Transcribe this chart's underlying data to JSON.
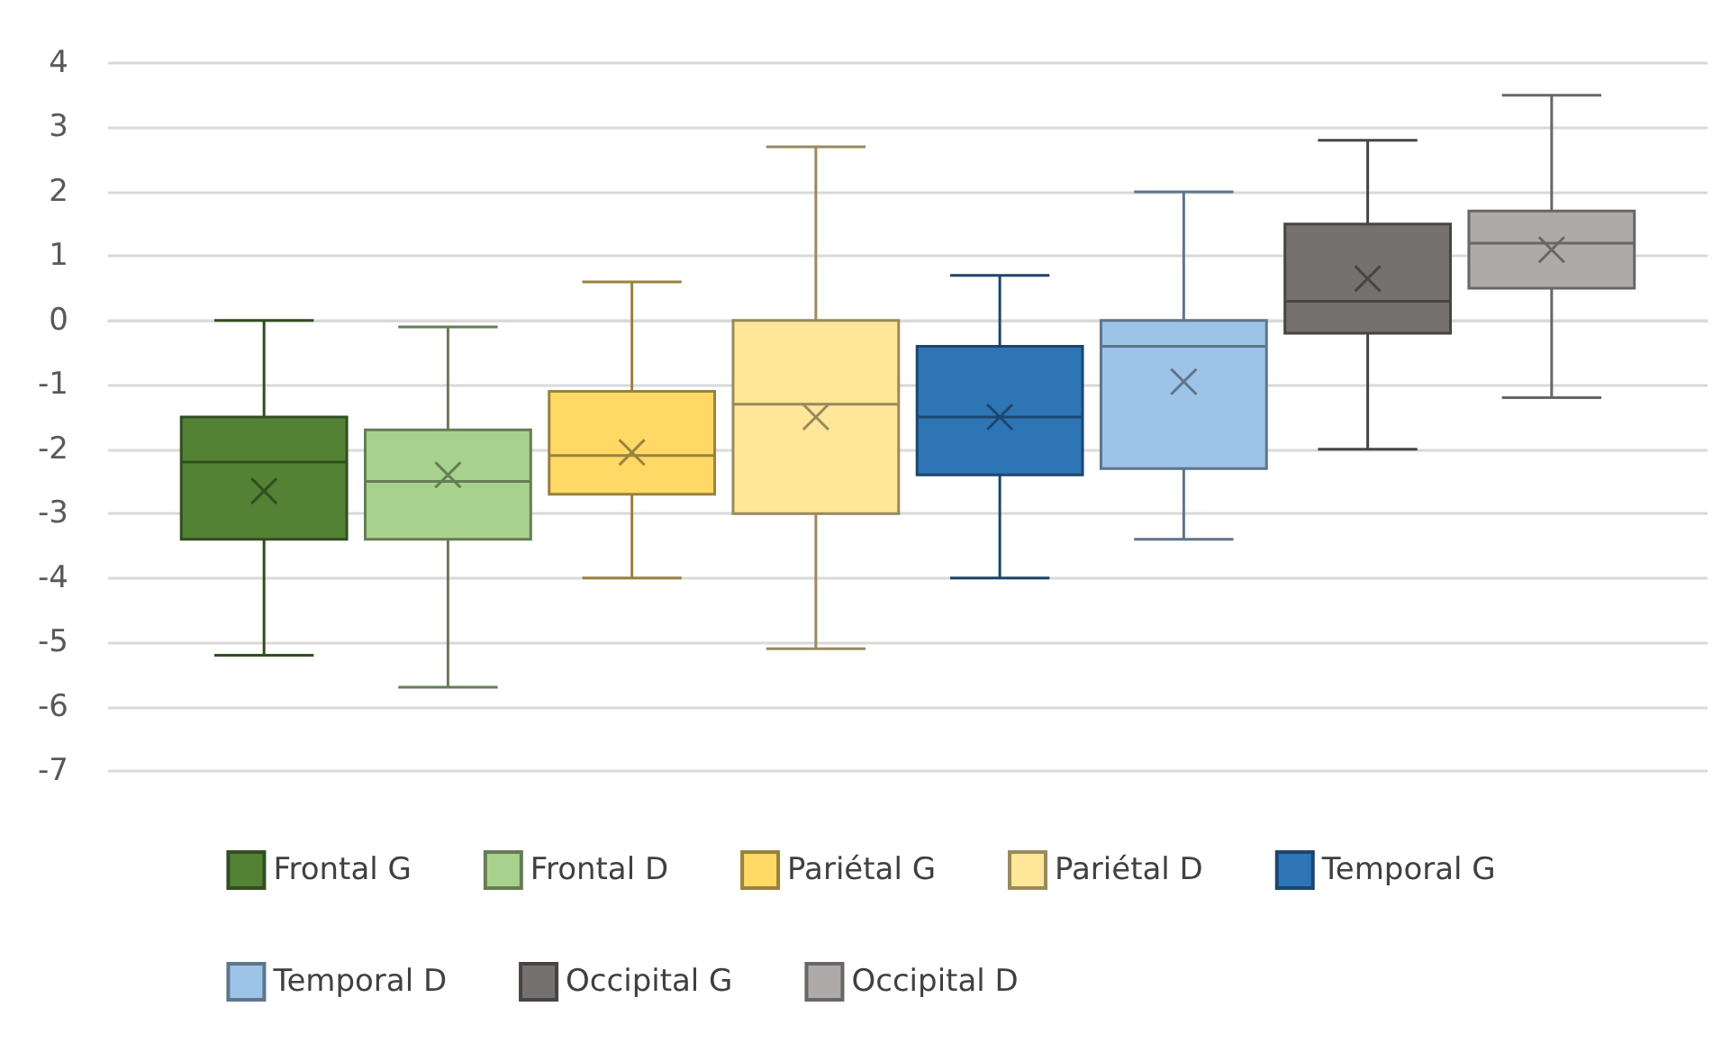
{
  "chart_data": {
    "type": "box",
    "categories": [
      null
    ],
    "ylim": [
      -7,
      4
    ],
    "yticks": [
      -7,
      -6,
      -5,
      -4,
      -3,
      -2,
      -1,
      0,
      1,
      2,
      3,
      4
    ],
    "grid": "y",
    "legend": "bottom",
    "series": [
      {
        "name": "Frontal G",
        "color": "#548235",
        "boxes": [
          {
            "low": -5.2,
            "q1": -3.4,
            "median": -2.2,
            "q3": -1.5,
            "high": 0,
            "mean": -2.65
          }
        ]
      },
      {
        "name": "Frontal D",
        "color": "#a9d18e",
        "boxes": [
          {
            "low": -5.7,
            "q1": -3.4,
            "median": -2.5,
            "q3": -1.7,
            "high": -0.1,
            "mean": -2.4
          }
        ]
      },
      {
        "name": "Pariétal G",
        "color": "#ffd966",
        "boxes": [
          {
            "low": -4.0,
            "q1": -2.7,
            "median": -2.1,
            "q3": -1.1,
            "high": 0.6,
            "mean": -2.05
          }
        ]
      },
      {
        "name": "Pariétal D",
        "color": "#ffe699",
        "boxes": [
          {
            "low": -5.1,
            "q1": -3.0,
            "median": -1.3,
            "q3": 0,
            "high": 2.7,
            "mean": -1.5
          }
        ]
      },
      {
        "name": "Temporal G",
        "color": "#2e75b6",
        "boxes": [
          {
            "low": -4.0,
            "q1": -2.4,
            "median": -1.5,
            "q3": -0.4,
            "high": 0.7,
            "mean": -1.5
          }
        ]
      },
      {
        "name": "Temporal D",
        "color": "#9dc3e6",
        "boxes": [
          {
            "low": -3.4,
            "q1": -2.3,
            "median": -0.4,
            "q3": 0,
            "high": 2.0,
            "mean": -0.95
          }
        ]
      },
      {
        "name": "Occipital G",
        "color": "#767171",
        "boxes": [
          {
            "low": -2.0,
            "q1": -0.2,
            "median": 0.3,
            "q3": 1.5,
            "high": 2.8,
            "mean": 0.65
          }
        ]
      },
      {
        "name": "Occipital D",
        "color": "#aeaaaa",
        "boxes": [
          {
            "low": -1.2,
            "q1": 0.5,
            "median": 1.2,
            "q3": 1.7,
            "high": 3.5,
            "mean": 1.1
          }
        ]
      }
    ]
  }
}
